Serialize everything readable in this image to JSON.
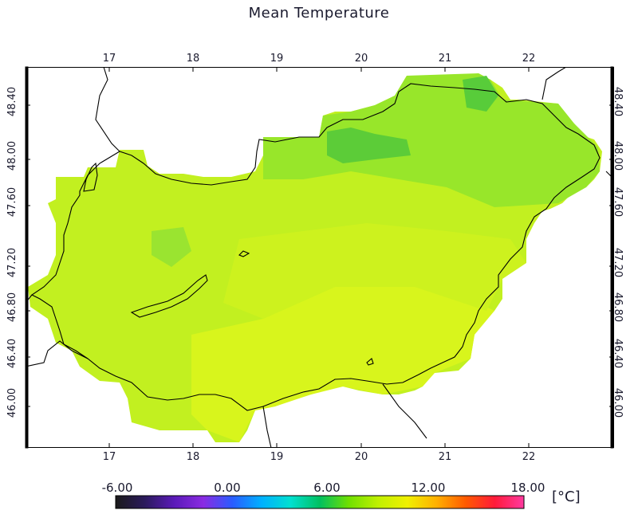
{
  "title": "Mean Temperature",
  "x_ticks": [
    "17",
    "18",
    "19",
    "20",
    "21",
    "22"
  ],
  "y_ticks": [
    "48.40",
    "48.00",
    "47.60",
    "47.20",
    "46.80",
    "46.40",
    "46.00"
  ],
  "colorbar": {
    "ticks": [
      "-6.00",
      "0.00",
      "6.00",
      "12.00",
      "18.00"
    ],
    "unit": "[°C]",
    "min": -6,
    "max": 18,
    "stops": [
      "#1a1a1a",
      "#2b1a5c",
      "#5a1ab8",
      "#8a2be2",
      "#2a5cff",
      "#00b0ff",
      "#00e0d0",
      "#00c060",
      "#70e000",
      "#c0f000",
      "#f0f000",
      "#ffb000",
      "#ff5a00",
      "#ff1a3a",
      "#ff3aa0"
    ]
  },
  "map": {
    "lon_range": [
      16,
      23
    ],
    "lat_range": [
      45.6,
      48.7
    ],
    "grid_colors": {
      "warm": "#d8f520",
      "mid": "#b6ee20",
      "cool": "#8ee22a",
      "cold": "#4cc83a"
    }
  }
}
